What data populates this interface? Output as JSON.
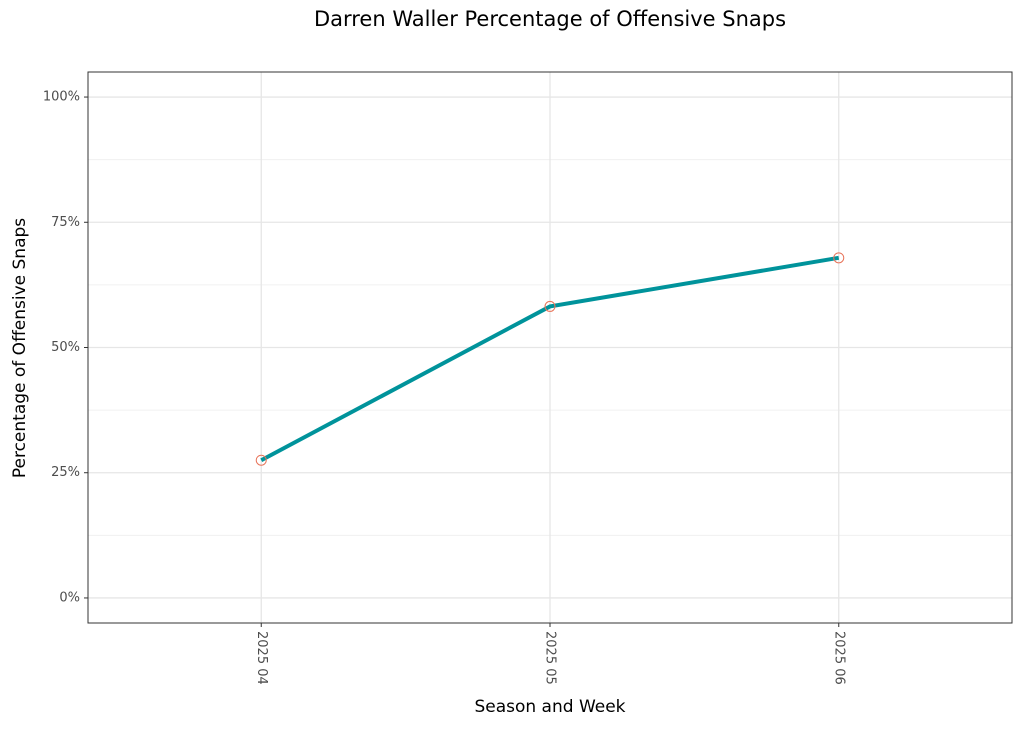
{
  "chart_data": {
    "type": "line",
    "title": "Darren Waller Percentage of Offensive Snaps",
    "x_label": "Season and Week",
    "y_label": "Percentage of Offensive Snaps",
    "categories": [
      "2025 04",
      "2025 05",
      "2025 06"
    ],
    "series": [
      {
        "color": "#00939b",
        "point_color": "#e8745a",
        "values": [
          27.5,
          58.2,
          67.9
        ]
      }
    ],
    "ylim": [
      -5,
      105
    ],
    "yticks": [
      {
        "value": 0,
        "label": "0%"
      },
      {
        "value": 25,
        "label": "25%"
      },
      {
        "value": 50,
        "label": "50%"
      },
      {
        "value": 75,
        "label": "75%"
      },
      {
        "value": 100,
        "label": "100%"
      }
    ],
    "grid": true
  }
}
